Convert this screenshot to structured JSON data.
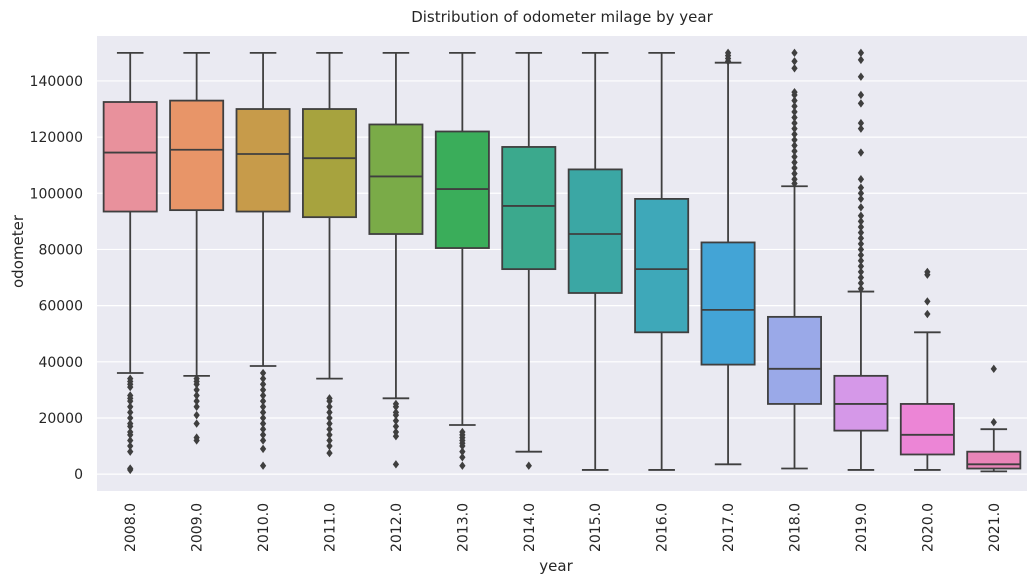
{
  "chart_data": {
    "type": "box",
    "title": "Distribution of odometer milage by year",
    "xlabel": "year",
    "ylabel": "odometer",
    "ylim": [
      -6000,
      156000
    ],
    "yticks": [
      0,
      20000,
      40000,
      60000,
      80000,
      100000,
      120000,
      140000
    ],
    "ytick_labels": [
      "0",
      "20000",
      "40000",
      "60000",
      "80000",
      "100000",
      "120000",
      "140000"
    ],
    "grid": true,
    "categories": [
      "2008.0",
      "2009.0",
      "2010.0",
      "2011.0",
      "2012.0",
      "2013.0",
      "2014.0",
      "2015.0",
      "2016.0",
      "2017.0",
      "2018.0",
      "2019.0",
      "2020.0",
      "2021.0"
    ],
    "boxes": [
      {
        "year": "2008.0",
        "whislo": 36000,
        "q1": 93500,
        "med": 114500,
        "q3": 132500,
        "whishi": 150000,
        "color": "#e8919c",
        "fliers": [
          1500,
          2000,
          8000,
          10000,
          12000,
          14000,
          15000,
          17000,
          18000,
          20000,
          22000,
          24000,
          26000,
          27000,
          28000,
          31000,
          32000,
          33000,
          34000
        ]
      },
      {
        "year": "2009.0",
        "whislo": 35000,
        "q1": 94000,
        "med": 115500,
        "q3": 133000,
        "whishi": 150000,
        "color": "#e89568",
        "fliers": [
          12000,
          13000,
          18000,
          21000,
          24000,
          26000,
          28000,
          30000,
          32000,
          33000,
          34000
        ]
      },
      {
        "year": "2010.0",
        "whislo": 38500,
        "q1": 93500,
        "med": 114000,
        "q3": 130000,
        "whishi": 150000,
        "color": "#c79b4a",
        "fliers": [
          3000,
          9000,
          12000,
          14000,
          16000,
          18000,
          20000,
          22000,
          24000,
          26000,
          28000,
          30000,
          32000,
          34000,
          36000
        ]
      },
      {
        "year": "2011.0",
        "whislo": 34000,
        "q1": 91500,
        "med": 112500,
        "q3": 130000,
        "whishi": 150000,
        "color": "#a7a33e",
        "fliers": [
          7500,
          10000,
          12000,
          14000,
          16000,
          18000,
          20000,
          22000,
          24000,
          26000,
          27000
        ]
      },
      {
        "year": "2012.0",
        "whislo": 27000,
        "q1": 85500,
        "med": 106000,
        "q3": 124500,
        "whishi": 150000,
        "color": "#7aab48",
        "fliers": [
          3500,
          13500,
          15000,
          17000,
          19000,
          21000,
          22000,
          24000,
          25000
        ]
      },
      {
        "year": "2013.0",
        "whislo": 17500,
        "q1": 80500,
        "med": 101500,
        "q3": 122000,
        "whishi": 150000,
        "color": "#3aad5a",
        "fliers": [
          3000,
          6000,
          8000,
          10000,
          11000,
          12000,
          13000,
          14000,
          15000
        ]
      },
      {
        "year": "2014.0",
        "whislo": 8000,
        "q1": 73000,
        "med": 95500,
        "q3": 116500,
        "whishi": 150000,
        "color": "#3ba98d",
        "fliers": [
          3000
        ]
      },
      {
        "year": "2015.0",
        "whislo": 1500,
        "q1": 64500,
        "med": 85500,
        "q3": 108500,
        "whishi": 150000,
        "color": "#3ba7a4",
        "fliers": []
      },
      {
        "year": "2016.0",
        "whislo": 1500,
        "q1": 50500,
        "med": 73000,
        "q3": 98000,
        "whishi": 150000,
        "color": "#3ea8b9",
        "fliers": []
      },
      {
        "year": "2017.0",
        "whislo": 3500,
        "q1": 39000,
        "med": 58500,
        "q3": 82500,
        "whishi": 146500,
        "color": "#43a4d6",
        "fliers": [
          147000,
          148000,
          149000,
          150000
        ]
      },
      {
        "year": "2018.0",
        "whislo": 2000,
        "q1": 25000,
        "med": 37500,
        "q3": 56000,
        "whishi": 102500,
        "color": "#9aa9e8",
        "fliers": [
          103500,
          105000,
          107000,
          109000,
          111000,
          113000,
          115000,
          117000,
          119000,
          121000,
          123000,
          125000,
          127000,
          129000,
          131000,
          133000,
          135000,
          136000,
          144500,
          147000,
          150000
        ]
      },
      {
        "year": "2019.0",
        "whislo": 1500,
        "q1": 15500,
        "med": 25000,
        "q3": 35000,
        "whishi": 65000,
        "color": "#d598e8",
        "fliers": [
          66000,
          68000,
          70000,
          72000,
          74000,
          76000,
          78000,
          80000,
          82000,
          84000,
          86000,
          88000,
          90000,
          92000,
          95000,
          98000,
          100000,
          102000,
          105000,
          114500,
          123000,
          125000,
          132000,
          135000,
          141500,
          147500,
          150000
        ]
      },
      {
        "year": "2020.0",
        "whislo": 1500,
        "q1": 7000,
        "med": 14000,
        "q3": 25000,
        "whishi": 50500,
        "color": "#ec85d6",
        "fliers": [
          57000,
          61500,
          71000,
          72000
        ]
      },
      {
        "year": "2021.0",
        "whislo": 1000,
        "q1": 2000,
        "med": 3500,
        "q3": 8000,
        "whishi": 16000,
        "color": "#e985b8",
        "fliers": [
          18500,
          37500
        ]
      }
    ]
  },
  "colors": {
    "plot_background": "#eaeaf2",
    "grid": "#ffffff",
    "box_edge": "#3f3f3f",
    "text": "#262626"
  }
}
